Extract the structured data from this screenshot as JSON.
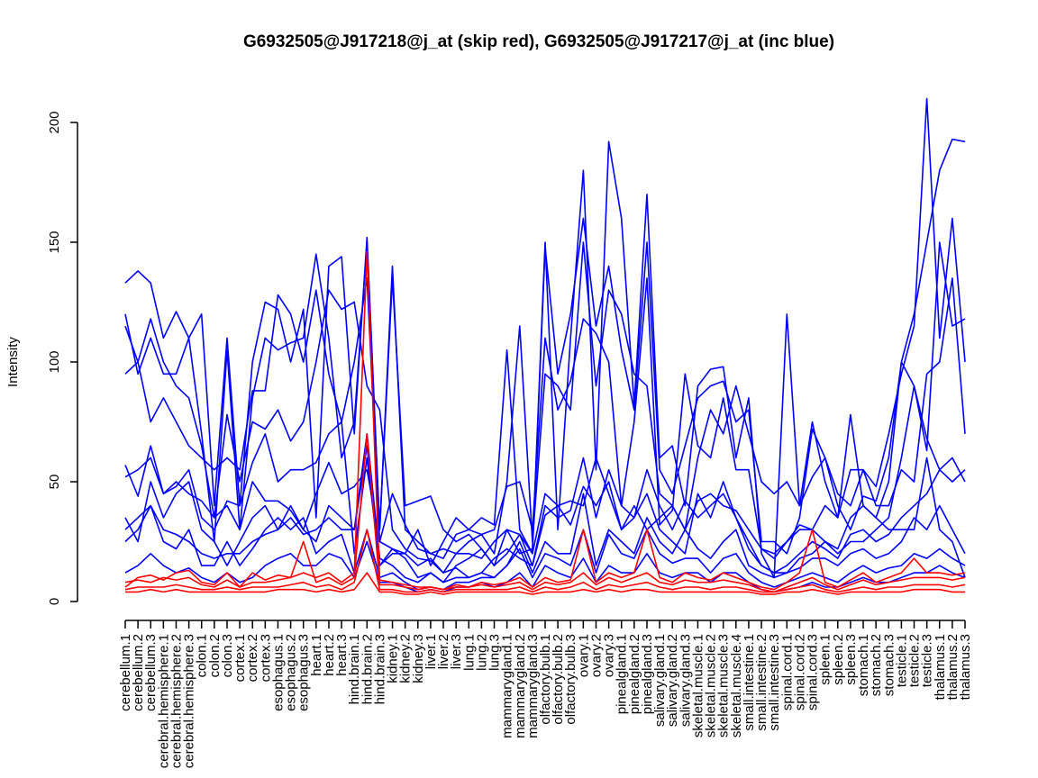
{
  "chart_data": {
    "type": "line",
    "title": "G6932505@J917218@j_at (skip red), G6932505@J917217@j_at (inc blue)",
    "xlabel": "",
    "ylabel": "Intensity",
    "ylim": [
      0,
      200
    ],
    "yticks": [
      0,
      50,
      100,
      150,
      200
    ],
    "grid": false,
    "legend": "none",
    "colors": {
      "skip": "#ff0000",
      "inc": "#0000ff"
    },
    "categories": [
      "cerebellum.1",
      "cerebellum.2",
      "cerebellum.3",
      "cerebral.hemisphere.1",
      "cerebral.hemisphere.2",
      "cerebral.hemisphere.3",
      "colon.1",
      "colon.2",
      "colon.3",
      "cortex.1",
      "cortex.2",
      "cortex.3",
      "esophagus.1",
      "esophagus.2",
      "esophagus.3",
      "heart.1",
      "heart.2",
      "heart.3",
      "hind.brain.1",
      "hind.brain.2",
      "hind.brain.3",
      "kidney.1",
      "kidney.2",
      "kidney.3",
      "liver.1",
      "liver.2",
      "liver.3",
      "lung.1",
      "lung.2",
      "lung.3",
      "mammarygland.1",
      "mammarygland.2",
      "mammarygland.3",
      "olfactory.bulb.1",
      "olfactory.bulb.2",
      "olfactory.bulb.3",
      "ovary.1",
      "ovary.2",
      "ovary.3",
      "pinealgland.1",
      "pinealgland.2",
      "pinealgland.3",
      "salivary.gland.1",
      "salivary.gland.2",
      "salivary.gland.3",
      "skeletal.muscle.1",
      "skeletal.muscle.2",
      "skeletal.muscle.3",
      "skeletal.muscle.4",
      "small.intestine.1",
      "small.intestine.2",
      "small.intestine.3",
      "spinal.cord.1",
      "spinal.cord.2",
      "spinal.cord.3",
      "spleen.1",
      "spleen.2",
      "spleen.3",
      "stomach.1",
      "stomach.2",
      "stomach.3",
      "testicle.1",
      "testicle.2",
      "testicle.3",
      "thalamus.1",
      "thalamus.2",
      "thalamus.3"
    ],
    "series": [
      {
        "group": "inc",
        "values": [
          133,
          138,
          133,
          110,
          121,
          110,
          120,
          40,
          110,
          40,
          100,
          125,
          122,
          100,
          122,
          35,
          140,
          144,
          70,
          152,
          30,
          135,
          40,
          42,
          44,
          30,
          25,
          28,
          22,
          15,
          30,
          20,
          22,
          150,
          30,
          110,
          180,
          55,
          192,
          160,
          82,
          170,
          60,
          65,
          40,
          90,
          97,
          98,
          60,
          85,
          20,
          10,
          120,
          40,
          52,
          60,
          40,
          30,
          44,
          42,
          60,
          100,
          120,
          150,
          180,
          193,
          192
        ]
      },
      {
        "group": "inc",
        "values": [
          120,
          95,
          110,
          95,
          95,
          110,
          70,
          25,
          105,
          30,
          85,
          110,
          105,
          108,
          110,
          145,
          110,
          60,
          75,
          150,
          30,
          140,
          30,
          25,
          20,
          18,
          28,
          30,
          35,
          32,
          105,
          30,
          20,
          148,
          95,
          120,
          160,
          115,
          140,
          105,
          80,
          150,
          55,
          45,
          65,
          85,
          90,
          92,
          75,
          80,
          25,
          25,
          20,
          35,
          72,
          60,
          45,
          40,
          55,
          48,
          70,
          95,
          115,
          210,
          110,
          160,
          100
        ]
      },
      {
        "group": "inc",
        "values": [
          95,
          100,
          118,
          100,
          90,
          85,
          65,
          35,
          78,
          50,
          75,
          72,
          80,
          67,
          75,
          100,
          130,
          122,
          125,
          90,
          80,
          30,
          22,
          18,
          17,
          12,
          20,
          25,
          28,
          20,
          50,
          115,
          25,
          95,
          90,
          80,
          150,
          90,
          130,
          120,
          95,
          90,
          45,
          40,
          30,
          60,
          80,
          70,
          90,
          70,
          50,
          45,
          50,
          40,
          75,
          50,
          35,
          78,
          40,
          35,
          50,
          100,
          90,
          63,
          150,
          115,
          118
        ]
      },
      {
        "group": "inc",
        "values": [
          115,
          100,
          75,
          85,
          75,
          65,
          60,
          55,
          60,
          55,
          88,
          88,
          128,
          120,
          100,
          130,
          95,
          75,
          100,
          135,
          25,
          22,
          20,
          30,
          15,
          25,
          35,
          30,
          28,
          30,
          48,
          50,
          30,
          110,
          80,
          92,
          118,
          112,
          100,
          40,
          75,
          135,
          32,
          38,
          95,
          65,
          60,
          85,
          55,
          55,
          22,
          18,
          25,
          30,
          30,
          40,
          35,
          55,
          55,
          40,
          40,
          55,
          50,
          95,
          100,
          135,
          70
        ]
      },
      {
        "group": "inc",
        "values": [
          52,
          55,
          60,
          45,
          50,
          45,
          42,
          35,
          40,
          30,
          50,
          42,
          42,
          38,
          30,
          45,
          58,
          45,
          48,
          55,
          25,
          45,
          32,
          22,
          20,
          22,
          20,
          20,
          18,
          25,
          30,
          28,
          20,
          45,
          40,
          42,
          40,
          60,
          45,
          30,
          40,
          30,
          35,
          40,
          30,
          42,
          45,
          40,
          38,
          30,
          22,
          20,
          25,
          32,
          30,
          25,
          20,
          25,
          25,
          30,
          35,
          60,
          90,
          68,
          55,
          50,
          55
        ]
      },
      {
        "group": "inc",
        "values": [
          57,
          44,
          65,
          45,
          48,
          55,
          35,
          30,
          42,
          40,
          58,
          70,
          50,
          55,
          55,
          58,
          70,
          75,
          20,
          60,
          15,
          20,
          20,
          15,
          18,
          12,
          14,
          10,
          12,
          18,
          22,
          18,
          15,
          36,
          40,
          32,
          48,
          40,
          50,
          30,
          35,
          45,
          30,
          25,
          20,
          45,
          35,
          50,
          35,
          22,
          15,
          12,
          12,
          18,
          20,
          25,
          22,
          35,
          40,
          35,
          30,
          30,
          30,
          60,
          30,
          25,
          10
        ]
      },
      {
        "group": "inc",
        "values": [
          25,
          30,
          40,
          30,
          28,
          25,
          20,
          18,
          20,
          20,
          25,
          28,
          30,
          35,
          28,
          30,
          35,
          30,
          30,
          70,
          18,
          15,
          10,
          8,
          12,
          8,
          10,
          10,
          12,
          10,
          15,
          25,
          12,
          25,
          20,
          20,
          45,
          15,
          30,
          25,
          20,
          35,
          25,
          20,
          30,
          22,
          18,
          25,
          30,
          15,
          12,
          10,
          12,
          14,
          18,
          18,
          15,
          20,
          22,
          18,
          20,
          25,
          35,
          30,
          40,
          30,
          20
        ]
      },
      {
        "group": "inc",
        "values": [
          30,
          35,
          40,
          25,
          22,
          30,
          15,
          15,
          25,
          15,
          22,
          30,
          35,
          30,
          35,
          20,
          25,
          28,
          12,
          30,
          10,
          12,
          8,
          5,
          6,
          5,
          8,
          8,
          10,
          10,
          15,
          22,
          10,
          20,
          18,
          15,
          30,
          12,
          28,
          20,
          18,
          30,
          20,
          16,
          18,
          18,
          12,
          18,
          20,
          12,
          8,
          6,
          8,
          10,
          12,
          10,
          8,
          12,
          15,
          12,
          14,
          15,
          20,
          18,
          22,
          18,
          15
        ]
      },
      {
        "group": "inc",
        "values": [
          12,
          15,
          20,
          15,
          12,
          14,
          10,
          8,
          12,
          8,
          10,
          15,
          18,
          20,
          15,
          15,
          20,
          18,
          10,
          25,
          8,
          8,
          6,
          4,
          5,
          4,
          6,
          6,
          8,
          6,
          8,
          12,
          6,
          15,
          12,
          10,
          18,
          8,
          15,
          12,
          12,
          20,
          12,
          10,
          12,
          12,
          8,
          12,
          12,
          8,
          5,
          4,
          5,
          6,
          8,
          6,
          6,
          8,
          10,
          8,
          8,
          10,
          12,
          12,
          15,
          12,
          10
        ]
      },
      {
        "group": "inc",
        "values": [
          35,
          25,
          50,
          35,
          45,
          50,
          30,
          25,
          15,
          25,
          35,
          40,
          30,
          40,
          30,
          25,
          40,
          35,
          30,
          65,
          15,
          22,
          18,
          10,
          12,
          8,
          15,
          18,
          22,
          15,
          20,
          28,
          15,
          40,
          35,
          38,
          60,
          35,
          55,
          40,
          35,
          55,
          40,
          30,
          42,
          35,
          40,
          45,
          35,
          25,
          15,
          12,
          15,
          20,
          25,
          22,
          18,
          28,
          30,
          25,
          28,
          35,
          40,
          45,
          55,
          60,
          50
        ]
      },
      {
        "group": "skip",
        "values": [
          6,
          10,
          11,
          9,
          12,
          13,
          8,
          7,
          12,
          6,
          12,
          9,
          11,
          10,
          12,
          10,
          12,
          8,
          12,
          146,
          9,
          8,
          7,
          6,
          6,
          5,
          7,
          6,
          8,
          7,
          8,
          10,
          6,
          10,
          8,
          9,
          30,
          8,
          12,
          10,
          12,
          30,
          10,
          8,
          12,
          10,
          9,
          12,
          10,
          8,
          6,
          5,
          8,
          12,
          30,
          8,
          6,
          9,
          12,
          8,
          10,
          12,
          18,
          12,
          12,
          11,
          12
        ]
      },
      {
        "group": "skip",
        "values": [
          8,
          9,
          8,
          10,
          9,
          10,
          7,
          6,
          9,
          6,
          8,
          8,
          9,
          10,
          25,
          8,
          10,
          7,
          10,
          70,
          7,
          7,
          6,
          5,
          6,
          5,
          6,
          6,
          7,
          6,
          7,
          8,
          5,
          8,
          7,
          8,
          12,
          7,
          10,
          8,
          10,
          12,
          8,
          7,
          9,
          8,
          8,
          9,
          8,
          7,
          5,
          4,
          6,
          8,
          10,
          7,
          5,
          7,
          9,
          7,
          8,
          9,
          10,
          10,
          10,
          9,
          10
        ]
      },
      {
        "group": "skip",
        "values": [
          5,
          6,
          6,
          6,
          7,
          6,
          5,
          5,
          6,
          5,
          6,
          6,
          6,
          7,
          8,
          6,
          7,
          5,
          8,
          30,
          5,
          5,
          4,
          4,
          5,
          4,
          5,
          5,
          5,
          5,
          5,
          6,
          4,
          6,
          5,
          6,
          8,
          5,
          7,
          6,
          7,
          8,
          6,
          5,
          6,
          6,
          5,
          6,
          6,
          5,
          4,
          4,
          5,
          6,
          7,
          5,
          4,
          5,
          6,
          5,
          6,
          6,
          7,
          7,
          7,
          6,
          7
        ]
      },
      {
        "group": "skip",
        "values": [
          4,
          4,
          5,
          4,
          5,
          4,
          4,
          4,
          4,
          4,
          4,
          4,
          5,
          5,
          5,
          4,
          5,
          4,
          5,
          12,
          4,
          4,
          3,
          3,
          4,
          3,
          4,
          4,
          4,
          4,
          4,
          4,
          3,
          4,
          4,
          4,
          5,
          4,
          5,
          4,
          5,
          5,
          4,
          4,
          4,
          4,
          4,
          4,
          4,
          4,
          3,
          3,
          4,
          4,
          5,
          4,
          3,
          4,
          4,
          4,
          4,
          4,
          5,
          5,
          5,
          4,
          4
        ]
      }
    ]
  }
}
